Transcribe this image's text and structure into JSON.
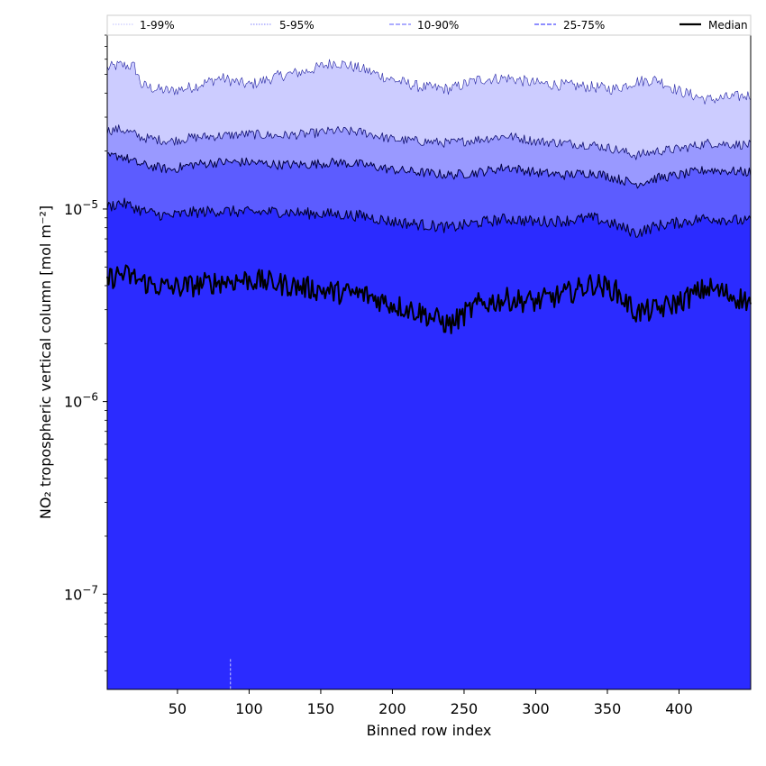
{
  "chart_data": {
    "type": "area",
    "xlabel": "Binned row index",
    "ylabel": "NO₂ tropospheric vertical column [mol m⁻²]",
    "xlim": [
      1,
      450
    ],
    "ylim": [
      3.2e-08,
      8e-05
    ],
    "y_scale": "log",
    "grid": false,
    "legend_position": "top",
    "x_ticks": [
      50,
      100,
      150,
      200,
      250,
      300,
      350,
      400
    ],
    "y_ticks": [
      {
        "value": 1e-07,
        "base": "10",
        "exp": "−7"
      },
      {
        "value": 1e-06,
        "base": "10",
        "exp": "−6"
      },
      {
        "value": 1e-05,
        "base": "10",
        "exp": "−5"
      }
    ],
    "legend": [
      {
        "label": "1-99%",
        "color": "#ccccff",
        "style": "dotted"
      },
      {
        "label": "5-95%",
        "color": "#9999ff",
        "style": "dotted"
      },
      {
        "label": "10-90%",
        "color": "#7b7bff",
        "style": "dashed"
      },
      {
        "label": "25-75%",
        "color": "#4b4bff",
        "style": "dashed"
      },
      {
        "label": "Median",
        "color": "#000000",
        "style": "solid"
      }
    ],
    "band_colors": {
      "p1_99": "#ccccff",
      "p5_95": "#9999ff",
      "p10_90": "#5c5cff",
      "p25_75": "#2b2bff"
    },
    "x": [
      1,
      10,
      20,
      25,
      35,
      45,
      60,
      80,
      100,
      120,
      140,
      160,
      180,
      200,
      220,
      240,
      260,
      280,
      300,
      320,
      340,
      355,
      370,
      385,
      400,
      420,
      450
    ],
    "series": [
      {
        "name": "p99",
        "values": [
          5.4e-05,
          5.6e-05,
          5.5e-05,
          4.4e-05,
          4.2e-05,
          4.1e-05,
          4.3e-05,
          4.8e-05,
          4.4e-05,
          4.9e-05,
          5.2e-05,
          5.8e-05,
          5.3e-05,
          4.7e-05,
          4.3e-05,
          4.2e-05,
          4.7e-05,
          4.8e-05,
          4.5e-05,
          4.4e-05,
          4.3e-05,
          4.2e-05,
          4.6e-05,
          4.7e-05,
          4.1e-05,
          3.7e-05,
          3.9e-05
        ]
      },
      {
        "name": "p95",
        "values": [
          2.55e-05,
          2.6e-05,
          2.45e-05,
          2.35e-05,
          2.3e-05,
          2.25e-05,
          2.35e-05,
          2.4e-05,
          2.45e-05,
          2.4e-05,
          2.45e-05,
          2.55e-05,
          2.5e-05,
          2.3e-05,
          2.25e-05,
          2.2e-05,
          2.3e-05,
          2.4e-05,
          2.25e-05,
          2.2e-05,
          2.15e-05,
          2.05e-05,
          1.9e-05,
          2e-05,
          2.05e-05,
          2.2e-05,
          2.15e-05
        ]
      },
      {
        "name": "p90",
        "values": [
          1.85e-05,
          1.9e-05,
          1.75e-05,
          1.7e-05,
          1.65e-05,
          1.6e-05,
          1.7e-05,
          1.75e-05,
          1.75e-05,
          1.7e-05,
          1.7e-05,
          1.75e-05,
          1.7e-05,
          1.6e-05,
          1.55e-05,
          1.5e-05,
          1.55e-05,
          1.65e-05,
          1.55e-05,
          1.5e-05,
          1.55e-05,
          1.45e-05,
          1.35e-05,
          1.45e-05,
          1.5e-05,
          1.6e-05,
          1.55e-05
        ]
      },
      {
        "name": "p75",
        "values": [
          1.02e-05,
          1.08e-05,
          1.02e-05,
          9.8e-06,
          9.4e-06,
          9.2e-06,
          9.6e-06,
          9.8e-06,
          9.6e-06,
          9.7e-06,
          9.5e-06,
          9.4e-06,
          9.2e-06,
          8.6e-06,
          8.3e-06,
          8e-06,
          8.5e-06,
          8.9e-06,
          8.6e-06,
          8.7e-06,
          9e-06,
          8.3e-06,
          7.5e-06,
          8.2e-06,
          8.5e-06,
          9e-06,
          8.6e-06
        ]
      },
      {
        "name": "Median",
        "values": [
          4.3e-06,
          4.6e-06,
          4.4e-06,
          4.2e-06,
          4e-06,
          3.9e-06,
          4e-06,
          4.2e-06,
          4.3e-06,
          4.1e-06,
          3.9e-06,
          3.7e-06,
          3.6e-06,
          3.2e-06,
          2.9e-06,
          2.5e-06,
          3.2e-06,
          3.4e-06,
          3.3e-06,
          3.6e-06,
          4.1e-06,
          3.8e-06,
          2.9e-06,
          3e-06,
          3.3e-06,
          3.9e-06,
          3.3e-06
        ]
      }
    ],
    "noise_amplitude": {
      "p99": 0.03,
      "p95": 0.025,
      "p90": 0.025,
      "p75": 0.03,
      "Median": 0.06
    },
    "lower_bound": 3.2e-08,
    "marker_x": 87,
    "marker_top": 4.6e-08
  }
}
